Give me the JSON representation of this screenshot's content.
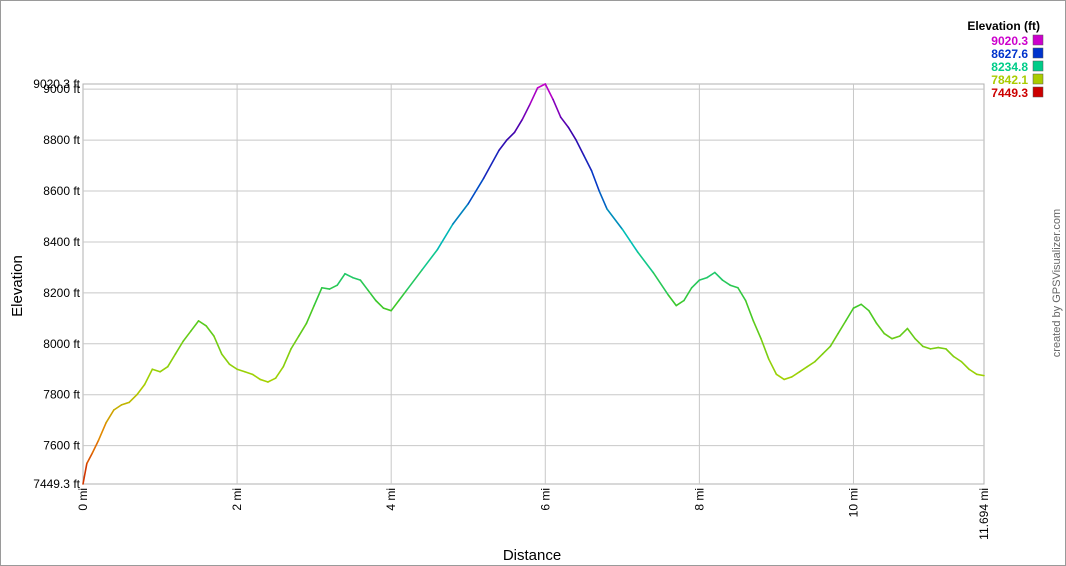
{
  "chart_data": {
    "type": "line",
    "xlabel": "Distance",
    "ylabel": "Elevation",
    "xlim": [
      0,
      11.694
    ],
    "ylim": [
      7449.3,
      9020.3
    ],
    "x_ticks": [
      {
        "value": 0,
        "label": "0 mi"
      },
      {
        "value": 2,
        "label": "2 mi"
      },
      {
        "value": 4,
        "label": "4 mi"
      },
      {
        "value": 6,
        "label": "6 mi"
      },
      {
        "value": 8,
        "label": "8 mi"
      },
      {
        "value": 10,
        "label": "10 mi"
      },
      {
        "value": 11.694,
        "label": "11.694 mi"
      }
    ],
    "y_ticks": [
      {
        "value": 7449.3,
        "label": "7449.3 ft"
      },
      {
        "value": 7600,
        "label": "7600 ft"
      },
      {
        "value": 7800,
        "label": "7800 ft"
      },
      {
        "value": 8000,
        "label": "8000 ft"
      },
      {
        "value": 8200,
        "label": "8200 ft"
      },
      {
        "value": 8400,
        "label": "8400 ft"
      },
      {
        "value": 8600,
        "label": "8600 ft"
      },
      {
        "value": 8800,
        "label": "8800 ft"
      },
      {
        "value": 9000,
        "label": "9000 ft"
      },
      {
        "value": 9020.3,
        "label": "9020.3 ft"
      }
    ],
    "grid": true,
    "legend": {
      "title": "Elevation (ft)",
      "placement": "top-right",
      "entries": [
        {
          "label": "9020.3",
          "color": "#cc00cc"
        },
        {
          "label": "8627.6",
          "color": "#0033cc"
        },
        {
          "label": "8234.8",
          "color": "#00cc88"
        },
        {
          "label": "7842.1",
          "color": "#aacc00"
        },
        {
          "label": "7449.3",
          "color": "#cc0000"
        }
      ]
    },
    "series": [
      {
        "x": [
          0,
          0.05,
          0.12,
          0.2,
          0.3,
          0.4,
          0.5,
          0.6,
          0.7,
          0.8,
          0.9,
          1.0,
          1.1,
          1.2,
          1.3,
          1.4,
          1.5,
          1.6,
          1.7,
          1.8,
          1.9,
          2.0,
          2.1,
          2.2,
          2.3,
          2.4,
          2.5,
          2.6,
          2.7,
          2.8,
          2.9,
          3.0,
          3.1,
          3.2,
          3.3,
          3.4,
          3.5,
          3.6,
          3.7,
          3.8,
          3.9,
          4.0,
          4.1,
          4.2,
          4.4,
          4.6,
          4.8,
          5.0,
          5.2,
          5.4,
          5.5,
          5.6,
          5.7,
          5.8,
          5.9,
          6.0,
          6.1,
          6.2,
          6.3,
          6.4,
          6.5,
          6.6,
          6.7,
          6.8,
          7.0,
          7.2,
          7.4,
          7.6,
          7.7,
          7.8,
          7.9,
          8.0,
          8.1,
          8.2,
          8.3,
          8.4,
          8.5,
          8.6,
          8.7,
          8.8,
          8.9,
          9.0,
          9.1,
          9.2,
          9.3,
          9.4,
          9.5,
          9.6,
          9.7,
          9.8,
          9.9,
          10.0,
          10.1,
          10.2,
          10.3,
          10.4,
          10.5,
          10.6,
          10.7,
          10.8,
          10.9,
          11.0,
          11.1,
          11.2,
          11.3,
          11.4,
          11.5,
          11.6,
          11.694
        ],
        "y": [
          7449.3,
          7530,
          7570,
          7620,
          7690,
          7740,
          7760,
          7770,
          7800,
          7840,
          7900,
          7890,
          7910,
          7960,
          8010,
          8050,
          8090,
          8070,
          8030,
          7960,
          7920,
          7900,
          7890,
          7880,
          7860,
          7850,
          7865,
          7910,
          7980,
          8030,
          8080,
          8150,
          8220,
          8215,
          8230,
          8275,
          8260,
          8250,
          8210,
          8170,
          8140,
          8130,
          8170,
          8210,
          8290,
          8370,
          8470,
          8550,
          8650,
          8760,
          8800,
          8830,
          8880,
          8940,
          9005,
          9020.3,
          8960,
          8890,
          8850,
          8800,
          8740,
          8680,
          8600,
          8530,
          8450,
          8360,
          8280,
          8190,
          8150,
          8170,
          8220,
          8250,
          8260,
          8280,
          8250,
          8230,
          8220,
          8170,
          8090,
          8020,
          7940,
          7880,
          7860,
          7870,
          7890,
          7910,
          7930,
          7960,
          7990,
          8040,
          8090,
          8140,
          8155,
          8130,
          8080,
          8040,
          8020,
          8030,
          8060,
          8020,
          7990,
          7980,
          7985,
          7980,
          7950,
          7930,
          7900,
          7880,
          7875
        ]
      }
    ]
  },
  "credit": "created by GPSVisualizer.com"
}
